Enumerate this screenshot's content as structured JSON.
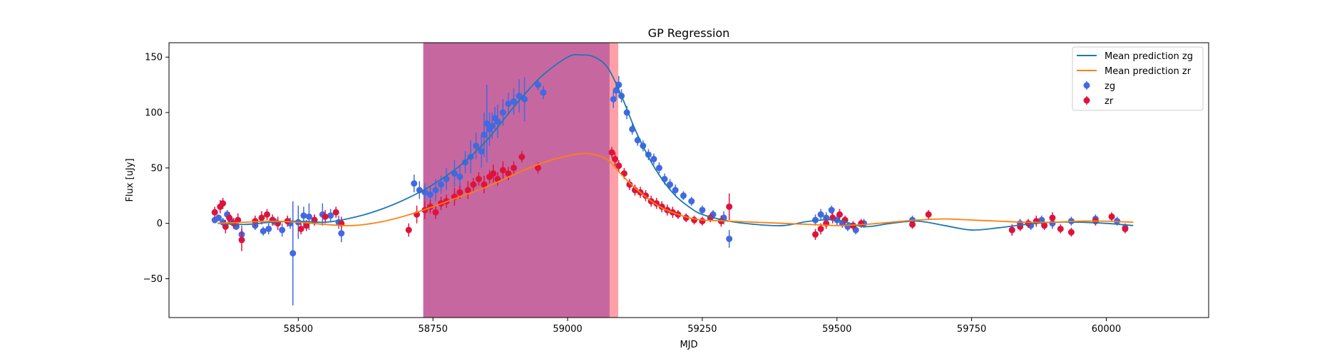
{
  "chart_data": {
    "type": "scatter",
    "title": "GP Regression",
    "xlabel": "MJD",
    "ylabel": "Flux [uJy]",
    "xlim": [
      58260,
      60190
    ],
    "ylim": [
      -85,
      163
    ],
    "xticks": [
      58500,
      58750,
      59000,
      59250,
      59500,
      59750,
      60000
    ],
    "yticks": [
      -50,
      0,
      50,
      100,
      150
    ],
    "grid": false,
    "legend_position": "upper right",
    "shaded_regions": [
      {
        "x_start": 58732,
        "x_end": 59078,
        "color": "#c7679f"
      },
      {
        "x_start": 59078,
        "x_end": 59094,
        "color": "#ffa0a8"
      }
    ],
    "series": [
      {
        "name": "Mean prediction zg",
        "kind": "line",
        "color": "#1f77b4",
        "x": [
          58350,
          58400,
          58450,
          58500,
          58550,
          58600,
          58650,
          58700,
          58750,
          58800,
          58850,
          58900,
          58950,
          59000,
          59025,
          59050,
          59075,
          59100,
          59125,
          59150,
          59175,
          59200,
          59225,
          59250,
          59300,
          59350,
          59400,
          59450,
          59500,
          59550,
          59600,
          59650,
          59700,
          59750,
          59800,
          59850,
          59900,
          59950,
          60000,
          60050
        ],
        "y": [
          0,
          -1,
          1,
          2,
          1,
          5,
          12,
          22,
          35,
          52,
          75,
          105,
          132,
          150,
          152,
          150,
          140,
          115,
          85,
          60,
          40,
          25,
          15,
          8,
          2,
          -1,
          -2,
          2,
          3,
          -3,
          0,
          2,
          -2,
          -6,
          -4,
          -1,
          1,
          1,
          0,
          -2
        ]
      },
      {
        "name": "Mean prediction zr",
        "kind": "line",
        "color": "#ff7f0e",
        "x": [
          58350,
          58400,
          58450,
          58500,
          58550,
          58600,
          58650,
          58700,
          58750,
          58800,
          58850,
          58900,
          58950,
          59000,
          59030,
          59050,
          59075,
          59100,
          59125,
          59150,
          59175,
          59200,
          59225,
          59250,
          59300,
          59350,
          59400,
          59450,
          59500,
          59550,
          59600,
          59650,
          59700,
          59750,
          59800,
          59850,
          59900,
          59950,
          60000,
          60050
        ],
        "y": [
          0,
          1,
          2,
          1,
          -1,
          -2,
          1,
          7,
          15,
          24,
          33,
          44,
          54,
          61,
          63,
          62,
          57,
          44,
          32,
          22,
          14,
          9,
          5,
          3,
          2,
          1,
          0,
          -1,
          -2,
          -1,
          1,
          3,
          4,
          3,
          2,
          1,
          1,
          2,
          2,
          1
        ],
        "_fix": "strictly ascending x"
      },
      {
        "name": "zg",
        "kind": "errorbar",
        "color": "#4169e1",
        "x": [
          58345,
          58352,
          58360,
          58368,
          58375,
          58385,
          58395,
          58420,
          58435,
          58445,
          58455,
          58470,
          58485,
          58490,
          58500,
          58510,
          58520,
          58530,
          58545,
          58560,
          58575,
          58580,
          58715,
          58725,
          58735,
          58745,
          58755,
          58765,
          58775,
          58790,
          58800,
          58810,
          58820,
          58830,
          58840,
          58845,
          58850,
          58855,
          58860,
          58865,
          58870,
          58880,
          58890,
          58900,
          58910,
          58920,
          58945,
          58955,
          59085,
          59090,
          59095,
          59100,
          59110,
          59120,
          59130,
          59140,
          59150,
          59160,
          59170,
          59180,
          59190,
          59200,
          59215,
          59230,
          59250,
          59270,
          59290,
          59300,
          59460,
          59470,
          59480,
          59490,
          59500,
          59510,
          59520,
          59535,
          59550,
          59640,
          59825,
          59840,
          59860,
          59880,
          59900,
          59935,
          59980,
          60020,
          60035
        ],
        "y": [
          3,
          5,
          1,
          8,
          2,
          -3,
          -10,
          -2,
          -7,
          -5,
          2,
          -6,
          0,
          -27,
          1,
          7,
          6,
          3,
          8,
          7,
          1,
          -9,
          36,
          30,
          28,
          26,
          30,
          35,
          40,
          45,
          42,
          55,
          60,
          70,
          65,
          80,
          90,
          85,
          88,
          95,
          92,
          100,
          108,
          110,
          115,
          112,
          125,
          118,
          112,
          120,
          125,
          115,
          100,
          85,
          75,
          70,
          62,
          58,
          50,
          40,
          35,
          30,
          25,
          20,
          12,
          8,
          5,
          -14,
          3,
          8,
          5,
          12,
          3,
          0,
          -3,
          -6,
          0,
          3,
          -6,
          0,
          -2,
          3,
          0,
          2,
          4,
          2,
          -4
        ],
        "yerr": [
          3,
          3,
          4,
          4,
          3,
          3,
          8,
          4,
          4,
          5,
          4,
          6,
          5,
          47,
          15,
          8,
          12,
          5,
          10,
          6,
          6,
          8,
          8,
          8,
          8,
          8,
          10,
          8,
          10,
          12,
          10,
          10,
          15,
          12,
          15,
          20,
          35,
          15,
          12,
          10,
          15,
          12,
          10,
          12,
          15,
          20,
          5,
          6,
          8,
          8,
          8,
          6,
          6,
          5,
          5,
          5,
          5,
          5,
          5,
          5,
          5,
          5,
          4,
          4,
          4,
          4,
          6,
          8,
          5,
          5,
          5,
          4,
          5,
          4,
          4,
          4,
          4,
          4,
          5,
          4,
          4,
          4,
          5,
          4,
          4,
          4,
          4
        ]
      },
      {
        "name": "zr",
        "kind": "errorbar",
        "color": "#dc143c",
        "x": [
          58345,
          58355,
          58360,
          58365,
          58372,
          58380,
          58388,
          58395,
          58420,
          58432,
          58442,
          58452,
          58462,
          58480,
          58505,
          58515,
          58530,
          58550,
          58570,
          58580,
          58705,
          58720,
          58735,
          58745,
          58755,
          58765,
          58775,
          58790,
          58800,
          58815,
          58825,
          58835,
          58845,
          58855,
          58862,
          58870,
          58880,
          58890,
          58900,
          58915,
          58945,
          59082,
          59088,
          59095,
          59105,
          59115,
          59125,
          59135,
          59145,
          59155,
          59165,
          59175,
          59185,
          59195,
          59205,
          59220,
          59235,
          59250,
          59265,
          59285,
          59300,
          59460,
          59470,
          59480,
          59492,
          59505,
          59515,
          59530,
          59545,
          59640,
          59670,
          59825,
          59840,
          59855,
          59870,
          59885,
          59900,
          59915,
          59935,
          59980,
          60010,
          60035
        ],
        "y": [
          10,
          15,
          18,
          -3,
          5,
          0,
          3,
          -15,
          2,
          5,
          8,
          3,
          0,
          2,
          -5,
          -2,
          3,
          6,
          10,
          0,
          -6,
          8,
          12,
          15,
          10,
          18,
          20,
          24,
          28,
          30,
          35,
          40,
          35,
          42,
          45,
          40,
          48,
          45,
          50,
          60,
          50,
          64,
          58,
          52,
          45,
          35,
          30,
          28,
          25,
          20,
          18,
          15,
          12,
          10,
          8,
          5,
          3,
          2,
          5,
          2,
          15,
          -10,
          -5,
          0,
          5,
          8,
          3,
          -2,
          0,
          -1,
          8,
          -6,
          -3,
          0,
          2,
          -2,
          5,
          -5,
          -8,
          2,
          6,
          -5
        ],
        "yerr": [
          5,
          6,
          5,
          6,
          5,
          5,
          6,
          10,
          5,
          6,
          5,
          5,
          6,
          5,
          5,
          5,
          5,
          6,
          5,
          6,
          6,
          8,
          8,
          6,
          6,
          6,
          6,
          8,
          6,
          8,
          6,
          6,
          8,
          6,
          8,
          6,
          8,
          6,
          6,
          5,
          5,
          5,
          6,
          5,
          5,
          5,
          5,
          5,
          5,
          5,
          5,
          5,
          5,
          5,
          4,
          4,
          4,
          4,
          4,
          5,
          12,
          5,
          5,
          5,
          5,
          5,
          4,
          4,
          4,
          4,
          4,
          5,
          4,
          4,
          5,
          4,
          5,
          4,
          4,
          4,
          4,
          4
        ]
      }
    ]
  }
}
